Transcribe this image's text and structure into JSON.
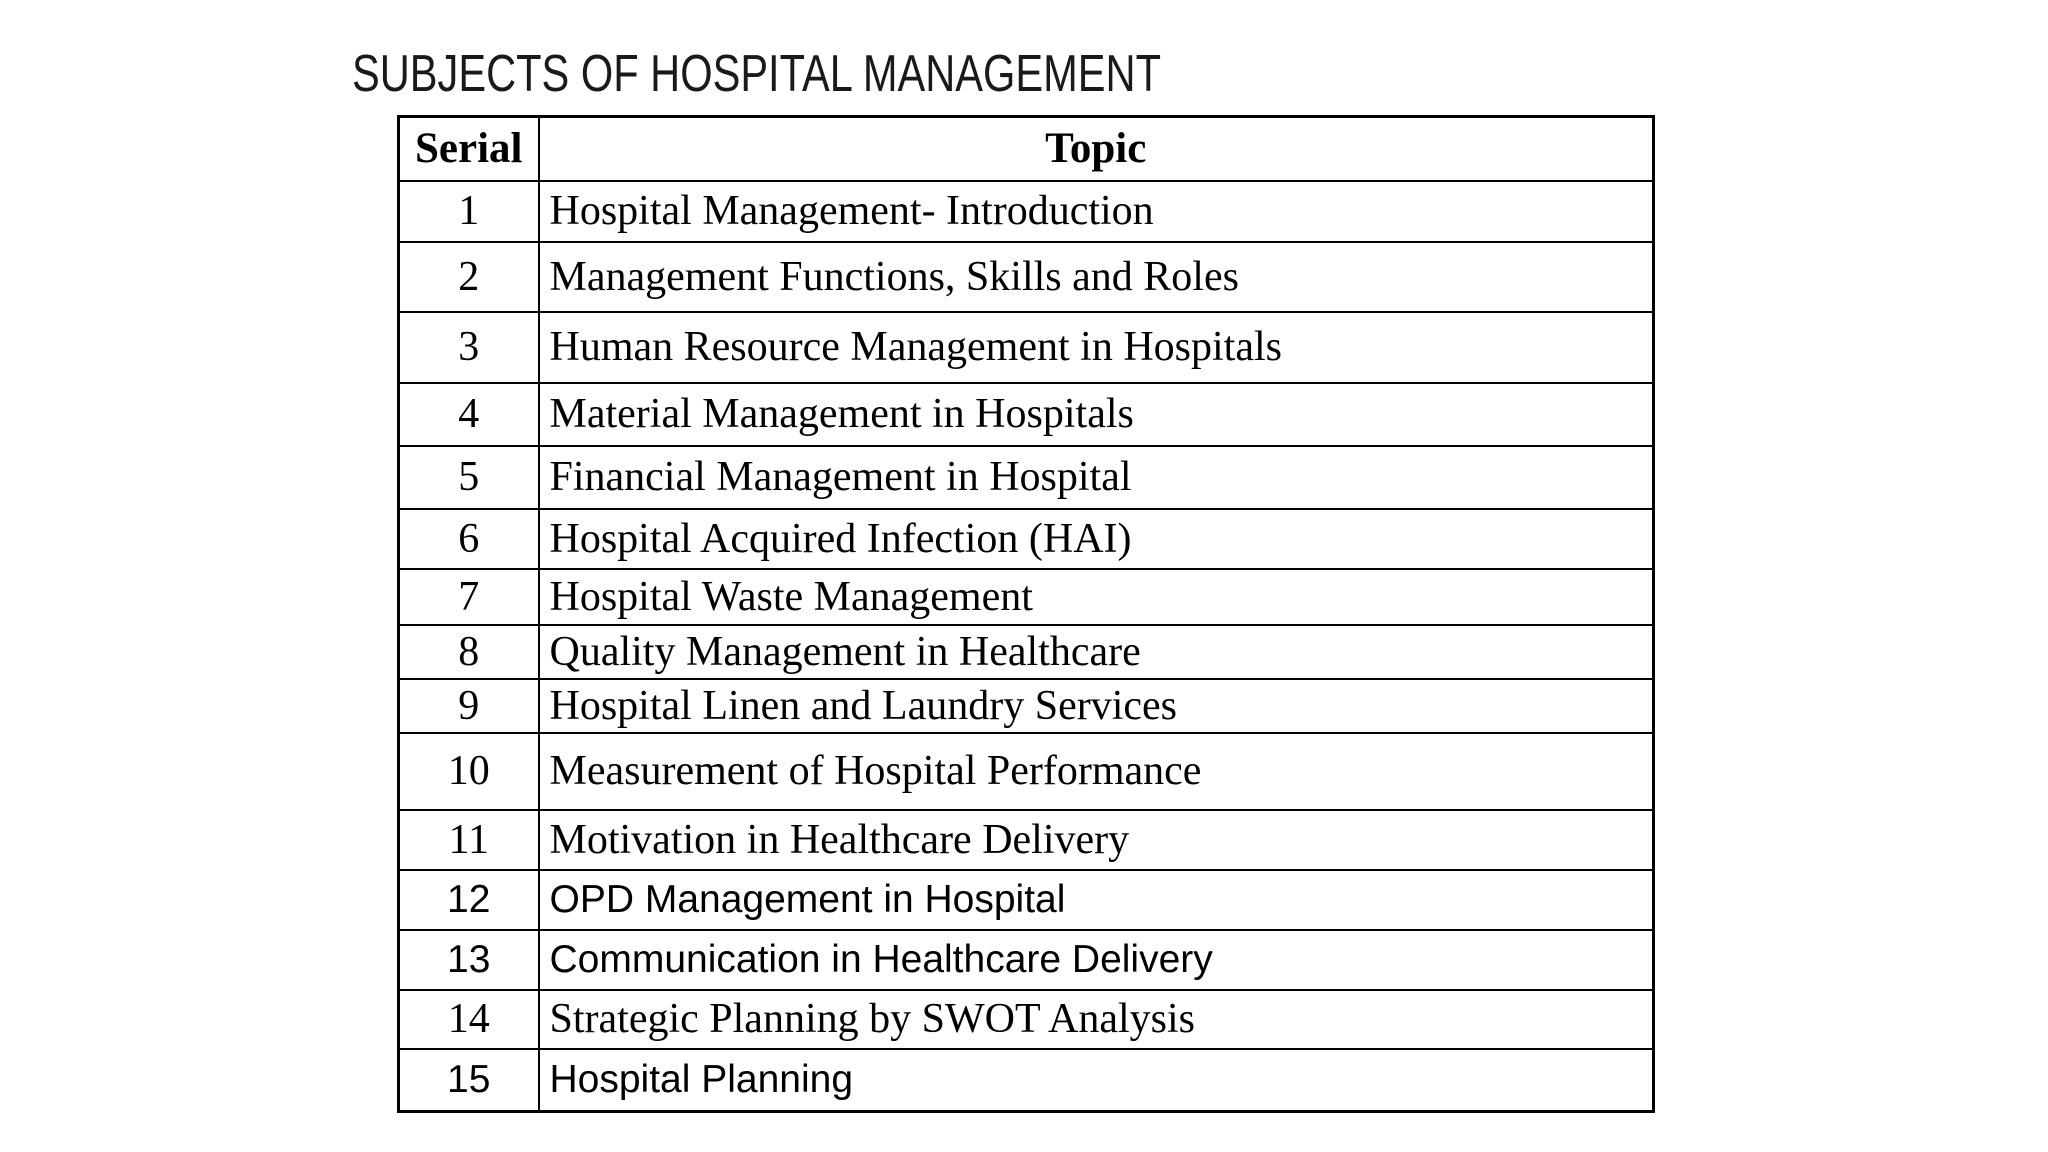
{
  "page": {
    "title": "SUBJECTS OF HOSPITAL MANAGEMENT"
  },
  "colors": {
    "background": "#ffffff",
    "text": "#000000",
    "border": "#000000"
  },
  "table": {
    "columns": [
      "Serial",
      "Topic"
    ],
    "rows": [
      {
        "serial": "1",
        "topic": "Hospital Management- Introduction"
      },
      {
        "serial": "2",
        "topic": "Management Functions, Skills and Roles"
      },
      {
        "serial": "3",
        "topic": "Human Resource Management in Hospitals"
      },
      {
        "serial": "4",
        "topic": "Material Management in Hospitals"
      },
      {
        "serial": "5",
        "topic": "Financial Management in Hospital"
      },
      {
        "serial": "6",
        "topic": "Hospital Acquired Infection (HAI)"
      },
      {
        "serial": "7",
        "topic": "Hospital Waste Management"
      },
      {
        "serial": "8",
        "topic": "Quality Management in Healthcare"
      },
      {
        "serial": "9",
        "topic": "Hospital Linen and Laundry Services"
      },
      {
        "serial": "10",
        "topic": "Measurement of Hospital Performance"
      },
      {
        "serial": "11",
        "topic": "Motivation in Healthcare Delivery"
      },
      {
        "serial": "12",
        "topic": "OPD Management in Hospital"
      },
      {
        "serial": "13",
        "topic": "Communication in Healthcare Delivery"
      },
      {
        "serial": "14",
        "topic": "Strategic Planning by SWOT Analysis"
      },
      {
        "serial": "15",
        "topic": "Hospital Planning"
      }
    ]
  }
}
